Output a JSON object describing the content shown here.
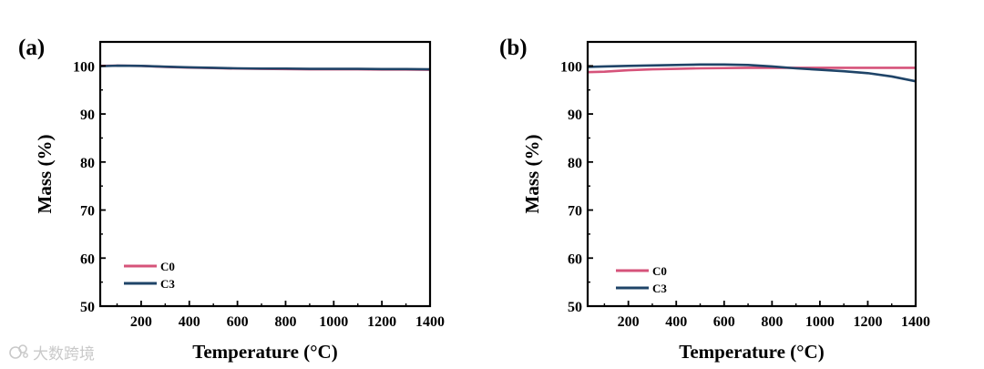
{
  "figure": {
    "watermark": "大数跨境"
  },
  "chart_data": [
    {
      "type": "line",
      "panel_label": "(a)",
      "xlabel": "Temperature (°C)",
      "ylabel": "Mass (%)",
      "xlim": [
        30,
        1400
      ],
      "ylim": [
        50,
        105
      ],
      "xticks": [
        200,
        400,
        600,
        800,
        1000,
        1200,
        1400
      ],
      "yticks": [
        50,
        60,
        70,
        80,
        90,
        100
      ],
      "legend_position": "bottom-left",
      "series": [
        {
          "name": "C0",
          "color": "#d6537a",
          "x": [
            30,
            100,
            200,
            300,
            400,
            500,
            600,
            700,
            800,
            900,
            1000,
            1100,
            1200,
            1300,
            1400
          ],
          "y": [
            100.0,
            100.05,
            100.0,
            99.8,
            99.65,
            99.55,
            99.45,
            99.4,
            99.35,
            99.3,
            99.3,
            99.3,
            99.25,
            99.25,
            99.2
          ]
        },
        {
          "name": "C3",
          "color": "#1f4468",
          "x": [
            30,
            100,
            200,
            300,
            400,
            500,
            600,
            700,
            800,
            900,
            1000,
            1100,
            1200,
            1300,
            1400
          ],
          "y": [
            99.95,
            100.05,
            100.0,
            99.85,
            99.7,
            99.6,
            99.5,
            99.45,
            99.45,
            99.4,
            99.4,
            99.4,
            99.35,
            99.35,
            99.3
          ]
        }
      ]
    },
    {
      "type": "line",
      "panel_label": "(b)",
      "xlabel": "Temperature (°C)",
      "ylabel": "Mass (%)",
      "xlim": [
        30,
        1400
      ],
      "ylim": [
        50,
        105
      ],
      "xticks": [
        200,
        400,
        600,
        800,
        1000,
        1200,
        1400
      ],
      "yticks": [
        50,
        60,
        70,
        80,
        90,
        100
      ],
      "legend_position": "bottom-left",
      "series": [
        {
          "name": "C0",
          "color": "#d6537a",
          "x": [
            30,
            100,
            200,
            300,
            400,
            500,
            600,
            700,
            800,
            900,
            1000,
            1100,
            1200,
            1300,
            1400
          ],
          "y": [
            98.7,
            98.8,
            99.1,
            99.3,
            99.4,
            99.5,
            99.55,
            99.6,
            99.6,
            99.6,
            99.6,
            99.6,
            99.6,
            99.6,
            99.6
          ]
        },
        {
          "name": "C3",
          "color": "#1f4468",
          "x": [
            30,
            100,
            200,
            300,
            400,
            500,
            600,
            700,
            800,
            900,
            1000,
            1100,
            1200,
            1300,
            1400
          ],
          "y": [
            99.8,
            99.9,
            100.0,
            100.1,
            100.2,
            100.3,
            100.3,
            100.2,
            99.9,
            99.5,
            99.2,
            98.9,
            98.5,
            97.8,
            96.8
          ]
        }
      ]
    }
  ]
}
